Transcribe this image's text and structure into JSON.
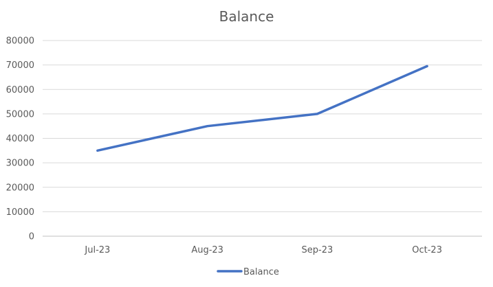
{
  "chart_data": {
    "type": "line",
    "title": "Balance",
    "xlabel": "",
    "ylabel": "",
    "categories": [
      "Jul-23",
      "Aug-23",
      "Sep-23",
      "Oct-23"
    ],
    "series": [
      {
        "name": "Balance",
        "values": [
          35000,
          45000,
          50000,
          69500
        ],
        "color": "#4472C4"
      }
    ],
    "ylim": [
      0,
      80000
    ],
    "yticks": [
      0,
      10000,
      20000,
      30000,
      40000,
      50000,
      60000,
      70000,
      80000
    ],
    "ytick_labels": [
      "0",
      "10000",
      "20000",
      "30000",
      "40000",
      "50000",
      "60000",
      "70000",
      "80000"
    ],
    "grid": true,
    "legend_position": "bottom",
    "colors": {
      "grid": "#D9D9D9",
      "text": "#595959",
      "axis": "#BFBFBF"
    }
  }
}
